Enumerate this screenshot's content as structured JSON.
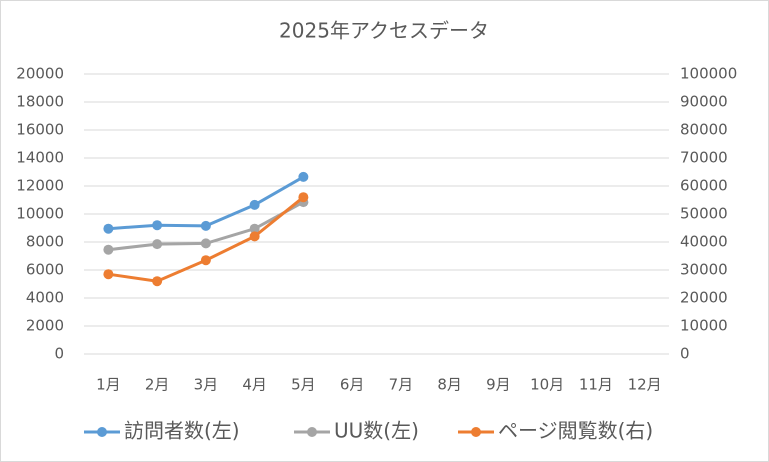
{
  "chart_data": {
    "type": "line",
    "title": "2025年アクセスデータ",
    "categories": [
      "1月",
      "2月",
      "3月",
      "4月",
      "5月",
      "6月",
      "7月",
      "8月",
      "9月",
      "10月",
      "11月",
      "12月"
    ],
    "series": [
      {
        "name": "訪問者数(左)",
        "color": "#5b9bd5",
        "values": [
          8950,
          9200,
          9150,
          10650,
          12650,
          null,
          null,
          null,
          null,
          null,
          null,
          null
        ]
      },
      {
        "name": "UU数(左)",
        "color": "#a5a5a5",
        "values": [
          7450,
          7850,
          7900,
          8950,
          10850,
          null,
          null,
          null,
          null,
          null,
          null,
          null
        ]
      },
      {
        "name": "ページ閲覧数(右)",
        "color": "#ed7d31",
        "axis": "y2",
        "values": [
          28500,
          26000,
          33500,
          42000,
          56000,
          null,
          null,
          null,
          null,
          null,
          null,
          null
        ]
      }
    ],
    "ylim": [
      0,
      20000
    ],
    "yticks": [
      0,
      2000,
      4000,
      6000,
      8000,
      10000,
      12000,
      14000,
      16000,
      18000,
      20000
    ],
    "y2lim": [
      0,
      100000
    ],
    "y2ticks": [
      0,
      10000,
      20000,
      30000,
      40000,
      50000,
      60000,
      70000,
      80000,
      90000,
      100000
    ],
    "grid": true,
    "legend": "bottom"
  }
}
